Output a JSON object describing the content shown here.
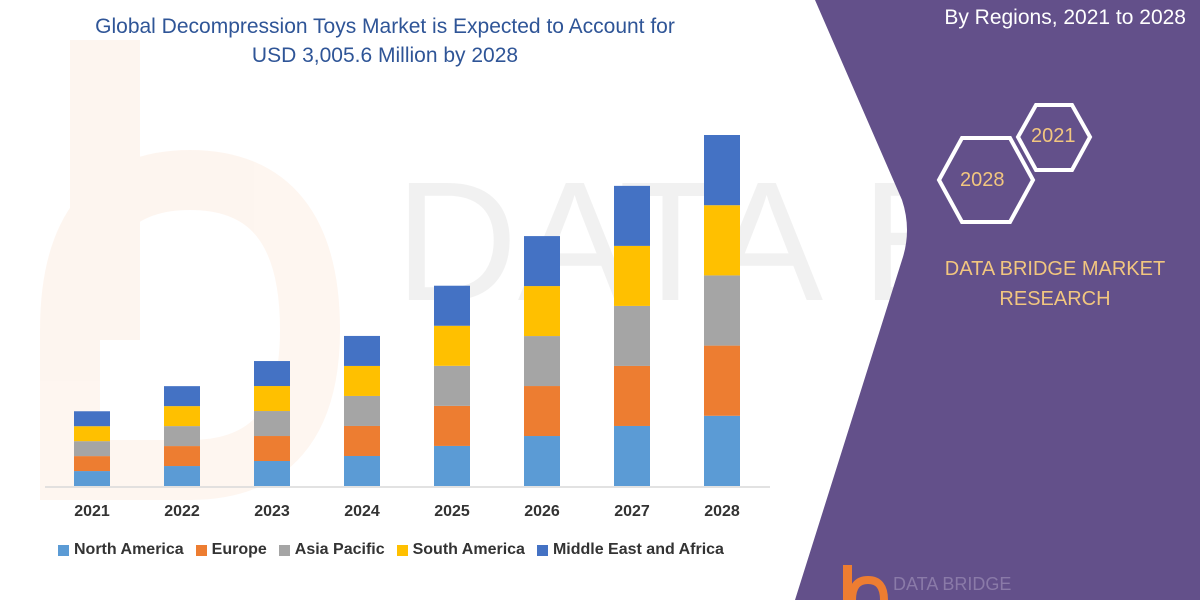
{
  "title_lines": [
    "Global Decompression Toys Market is Expected to Account for",
    "USD 3,005.6 Million by 2028"
  ],
  "panel": {
    "subtitle": "By Regions, 2021 to 2028",
    "hex_years": [
      "2028",
      "2021"
    ],
    "brand_lines": [
      "DATA BRIDGE MARKET",
      "RESEARCH"
    ],
    "logo_text": "DATA BRIDGE",
    "background_color": "#63508a",
    "accent_color": "#f2c67f"
  },
  "watermark_text": "DATA BRIDGE",
  "chart_data": {
    "type": "bar",
    "stacked": true,
    "title": "Global Decompression Toys Market is Expected to Account for USD 3,005.6 Million by 2028",
    "categories": [
      "2021",
      "2022",
      "2023",
      "2024",
      "2025",
      "2026",
      "2027",
      "2028"
    ],
    "series": [
      {
        "name": "North America",
        "color": "#5b9bd5",
        "values": [
          128,
          171,
          214,
          257,
          343,
          428,
          514,
          601.1
        ]
      },
      {
        "name": "Europe",
        "color": "#ed7d31",
        "values": [
          128,
          171,
          214,
          257,
          343,
          428,
          514,
          601.1
        ]
      },
      {
        "name": "Asia Pacific",
        "color": "#a5a5a5",
        "values": [
          128,
          171,
          214,
          257,
          343,
          428,
          514,
          601.1
        ]
      },
      {
        "name": "South America",
        "color": "#ffc000",
        "values": [
          128,
          171,
          214,
          257,
          343,
          428,
          514,
          601.1
        ]
      },
      {
        "name": "Middle East and Africa",
        "color": "#4472c4",
        "values": [
          128,
          171,
          214,
          257,
          343,
          428,
          514,
          601.2
        ]
      }
    ],
    "xlabel": "",
    "ylabel": "",
    "y_axis_visible": false,
    "grid": false,
    "legend_position": "bottom"
  }
}
